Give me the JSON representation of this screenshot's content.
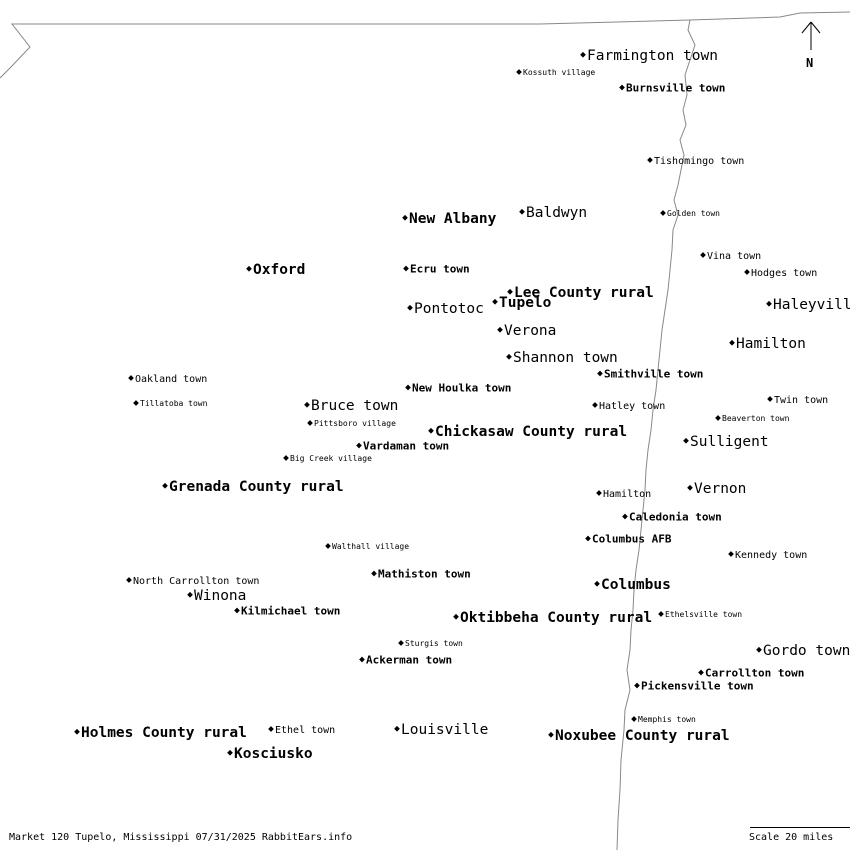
{
  "map": {
    "labels": [
      "Farmington town",
      "Kossuth village",
      "Burnsville town",
      "Tishomingo town",
      "Baldwyn",
      "Golden town",
      "New Albany",
      "Vina town",
      "Oxford",
      "Ecru town",
      "Hodges town",
      "Lee County rural",
      "Tupelo",
      "Haleyville",
      "Pontotoc",
      "Verona",
      "Hamilton",
      "Shannon town",
      "Smithville town",
      "Oakland town",
      "New Houlka town",
      "Twin town",
      "Tillatoba town",
      "Bruce town",
      "Hatley town",
      "Beaverton town",
      "Pittsboro village",
      "Chickasaw County rural",
      "Sulligent",
      "Vardaman town",
      "Big Creek village",
      "Grenada County rural",
      "Vernon",
      "Hamilton",
      "Caledonia town",
      "Columbus AFB",
      "Walthall village",
      "Kennedy town",
      "Mathiston town",
      "North Carrollton town",
      "Columbus",
      "Winona",
      "Kilmichael town",
      "Ethelsville town",
      "Oktibbeha County rural",
      "Sturgis town",
      "Gordo town",
      "Ackerman town",
      "Carrollton town",
      "Pickensville town",
      "Memphis town",
      "Holmes County rural",
      "Ethel town",
      "Louisville",
      "Noxubee County rural",
      "Kosciusko"
    ],
    "north_label": "N",
    "border_color": "#888888"
  },
  "footer": {
    "caption": "Market 120 Tupelo, Mississippi 07/31/2025 RabbitEars.info",
    "scale": "Scale 20 miles"
  }
}
